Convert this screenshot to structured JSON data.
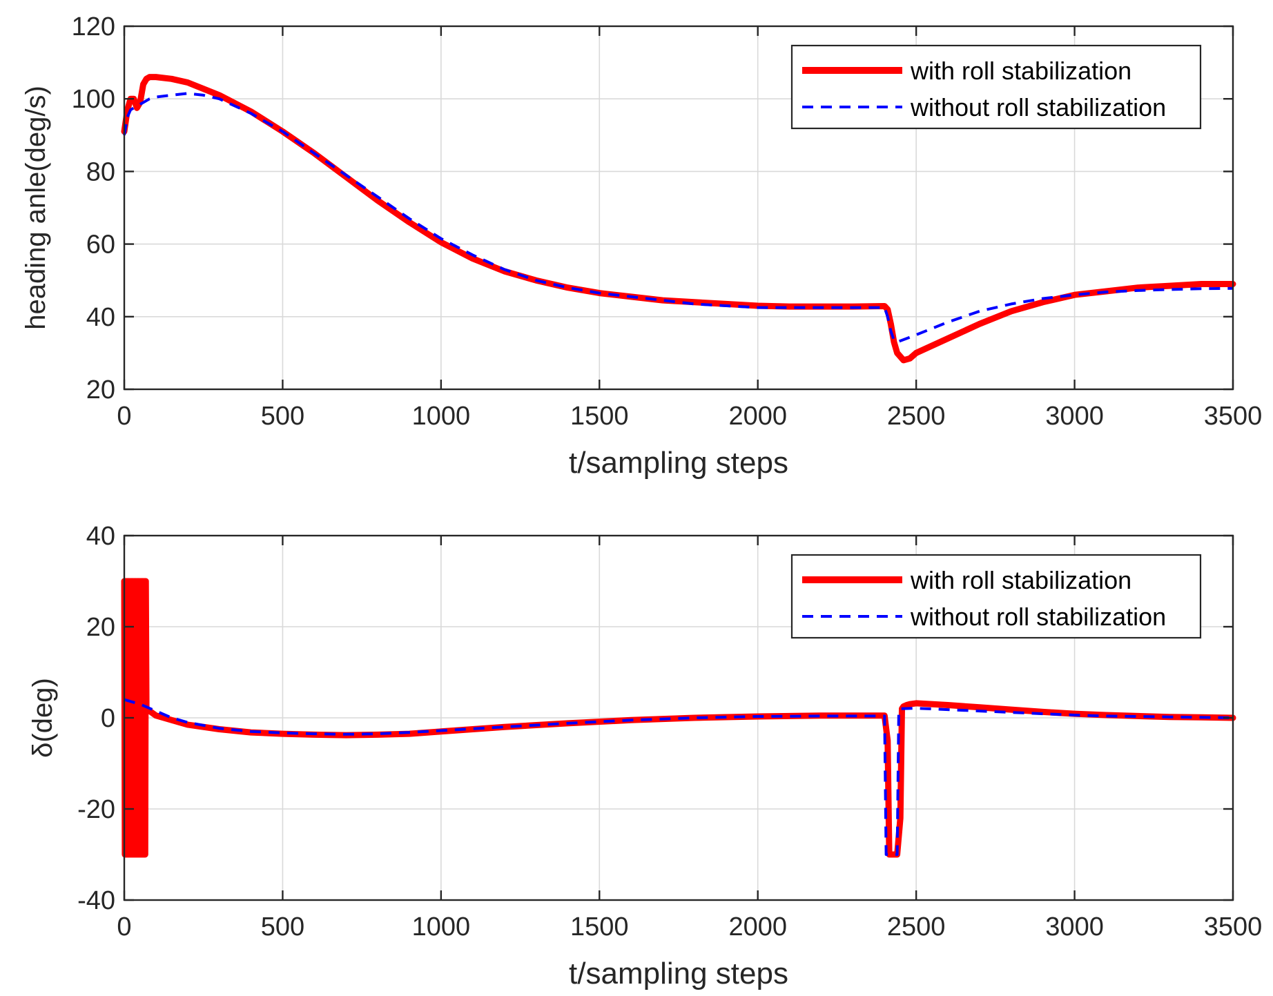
{
  "chart_data": [
    {
      "type": "line",
      "xlabel": "t/sampling steps",
      "ylabel": "heading anle(deg/s)",
      "xlim": [
        0,
        3500
      ],
      "ylim": [
        20,
        120
      ],
      "xticks": [
        0,
        500,
        1000,
        1500,
        2000,
        2500,
        3000,
        3500
      ],
      "yticks": [
        20,
        40,
        60,
        80,
        100,
        120
      ],
      "xtick_labels": [
        "0",
        "500",
        "1000",
        "1500",
        "2000",
        "2500",
        "3000",
        "3500"
      ],
      "ytick_labels": [
        "20",
        "40",
        "60",
        "80",
        "100",
        "120"
      ],
      "grid": true,
      "legend_position": "top-right",
      "series": [
        {
          "name": "with roll stabilization",
          "color": "#ff0000",
          "style": "solid",
          "x": [
            0,
            10,
            20,
            30,
            40,
            50,
            60,
            70,
            80,
            100,
            150,
            200,
            300,
            400,
            500,
            600,
            700,
            800,
            900,
            1000,
            1100,
            1200,
            1300,
            1400,
            1500,
            1600,
            1700,
            1800,
            1900,
            2000,
            2100,
            2200,
            2300,
            2400,
            2410,
            2420,
            2430,
            2440,
            2460,
            2480,
            2500,
            2600,
            2700,
            2800,
            2900,
            3000,
            3100,
            3200,
            3300,
            3400,
            3500
          ],
          "y": [
            91,
            97,
            100,
            100,
            97.5,
            99,
            104,
            105.5,
            106,
            106,
            105.5,
            104.5,
            101,
            96.5,
            91,
            85,
            78.5,
            72,
            66,
            60.5,
            56,
            52.5,
            50,
            48,
            46.5,
            45.5,
            44.5,
            44,
            43.5,
            43,
            42.8,
            42.8,
            42.8,
            42.9,
            42,
            38,
            33,
            30,
            28,
            28.5,
            30,
            34,
            38,
            41.5,
            44,
            46,
            47,
            48,
            48.5,
            49,
            49
          ]
        },
        {
          "name": "without roll stabilization",
          "color": "#0000ff",
          "style": "dashed",
          "x": [
            0,
            10,
            20,
            40,
            60,
            80,
            100,
            150,
            200,
            250,
            300,
            400,
            500,
            600,
            700,
            800,
            900,
            1000,
            1100,
            1200,
            1300,
            1400,
            1500,
            1600,
            1700,
            1800,
            1900,
            2000,
            2100,
            2200,
            2300,
            2400,
            2410,
            2420,
            2430,
            2440,
            2500,
            2600,
            2700,
            2800,
            2900,
            3000,
            3100,
            3200,
            3300,
            3400,
            3500
          ],
          "y": [
            90,
            95,
            97,
            98,
            99,
            100,
            100.5,
            101,
            101.5,
            101,
            100,
            96,
            91,
            85,
            79,
            73,
            67,
            61.5,
            57,
            53,
            50,
            48,
            46.5,
            45.5,
            44.5,
            43.5,
            43,
            42.5,
            42.5,
            42.5,
            42.5,
            42.5,
            40,
            36,
            33.5,
            33,
            35,
            38.5,
            41.5,
            43.5,
            45,
            46,
            46.8,
            47.2,
            47.5,
            47.7,
            47.8
          ]
        }
      ]
    },
    {
      "type": "line",
      "xlabel": "t/sampling steps",
      "ylabel": "δ(deg)",
      "xlim": [
        0,
        3500
      ],
      "ylim": [
        -40,
        40
      ],
      "xticks": [
        0,
        500,
        1000,
        1500,
        2000,
        2500,
        3000,
        3500
      ],
      "yticks": [
        -40,
        -20,
        0,
        20,
        40
      ],
      "xtick_labels": [
        "0",
        "500",
        "1000",
        "1500",
        "2000",
        "2500",
        "3000",
        "3500"
      ],
      "ytick_labels": [
        "-40",
        "-20",
        "0",
        "20",
        "40"
      ],
      "grid": true,
      "legend_position": "top-right",
      "series": [
        {
          "name": "with roll stabilization",
          "color": "#ff0000",
          "style": "solid",
          "x": [
            0,
            2,
            4,
            6,
            8,
            10,
            12,
            14,
            16,
            18,
            20,
            22,
            24,
            26,
            28,
            30,
            32,
            34,
            36,
            38,
            40,
            42,
            44,
            46,
            48,
            50,
            52,
            54,
            56,
            58,
            60,
            62,
            64,
            66,
            68,
            70,
            100,
            150,
            200,
            300,
            400,
            500,
            600,
            700,
            800,
            900,
            1000,
            1200,
            1400,
            1600,
            1800,
            2000,
            2200,
            2400,
            2410,
            2415,
            2420,
            2440,
            2450,
            2455,
            2460,
            2470,
            2480,
            2500,
            2600,
            2700,
            2800,
            2900,
            3000,
            3100,
            3200,
            3300,
            3400,
            3500
          ],
          "y": [
            30,
            -30,
            30,
            -30,
            30,
            -30,
            30,
            -30,
            30,
            -30,
            30,
            -30,
            30,
            -30,
            30,
            -30,
            30,
            -30,
            30,
            -30,
            30,
            -30,
            30,
            -30,
            30,
            -30,
            30,
            -30,
            30,
            -30,
            30,
            -30,
            30,
            -30,
            30,
            2,
            0.5,
            -0.5,
            -1.5,
            -2.5,
            -3.2,
            -3.5,
            -3.7,
            -3.8,
            -3.7,
            -3.5,
            -3,
            -2,
            -1.2,
            -0.5,
            0,
            0.3,
            0.5,
            0.5,
            -5,
            -30,
            -30,
            -30,
            -22,
            2,
            2.5,
            2.8,
            3,
            3.2,
            2.8,
            2.3,
            1.8,
            1.3,
            0.9,
            0.6,
            0.4,
            0.2,
            0.1,
            0
          ]
        },
        {
          "name": "without roll stabilization",
          "color": "#0000ff",
          "style": "dashed",
          "x": [
            0,
            50,
            100,
            150,
            200,
            300,
            400,
            500,
            600,
            700,
            800,
            900,
            1000,
            1200,
            1400,
            1600,
            1800,
            2000,
            2200,
            2400,
            2405,
            2410,
            2440,
            2445,
            2450,
            2500,
            2600,
            2700,
            2800,
            2900,
            3000,
            3100,
            3200,
            3300,
            3400,
            3500
          ],
          "y": [
            4,
            3,
            1.5,
            0,
            -1,
            -2.3,
            -3,
            -3.3,
            -3.5,
            -3.6,
            -3.5,
            -3.2,
            -2.8,
            -2,
            -1.2,
            -0.5,
            0,
            0.3,
            0.4,
            0.4,
            -30,
            -30,
            -30,
            1.5,
            2,
            2.1,
            1.8,
            1.5,
            1.2,
            0.9,
            0.6,
            0.4,
            0.3,
            0.2,
            0.1,
            0
          ]
        }
      ]
    }
  ]
}
